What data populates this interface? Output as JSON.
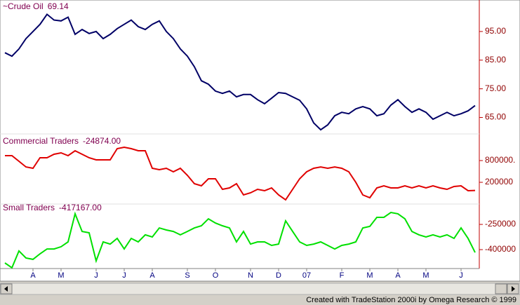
{
  "chart_data": [
    {
      "type": "line",
      "name": "~Crude Oil",
      "value_label": "69.14",
      "color": "#000066",
      "values": [
        87.6,
        86.4,
        88.9,
        92.5,
        95,
        97.5,
        101,
        99,
        98.7,
        100,
        94,
        95.7,
        94.3,
        95,
        92.5,
        94,
        96,
        97.5,
        99,
        96.7,
        95.7,
        97.5,
        98.7,
        95,
        92.5,
        88.9,
        86.4,
        82.7,
        77.8,
        76.6,
        74.2,
        73.4,
        74.2,
        72.2,
        73,
        73,
        71.2,
        69.8,
        71.7,
        73.7,
        73.4,
        72.2,
        71,
        68,
        63.1,
        60.7,
        62.4,
        65.6,
        66.8,
        66.3,
        68,
        68.8,
        68,
        65.6,
        66.3,
        69.3,
        71.2,
        68.8,
        66.8,
        68,
        66.8,
        64.4,
        65.6,
        66.8,
        65.6,
        66.3,
        67.3,
        69.14
      ],
      "ylim": [
        59.5,
        105.5
      ],
      "yticks": [
        {
          "value": 95,
          "label": "95.00"
        },
        {
          "value": 85,
          "label": "85.00"
        },
        {
          "value": 75,
          "label": "75.00"
        },
        {
          "value": 65,
          "label": "65.00"
        }
      ]
    },
    {
      "type": "line",
      "name": "Commercial Traders",
      "value_label": "-24874.00",
      "color": "#e00000",
      "values": [
        935000,
        935000,
        780000,
        625000,
        587000,
        877000,
        877000,
        974000,
        1013000,
        935000,
        1071000,
        974000,
        877000,
        819000,
        819000,
        819000,
        1129000,
        1168000,
        1129000,
        1071000,
        1071000,
        587000,
        548000,
        587000,
        490000,
        587000,
        394000,
        161000,
        103000,
        297000,
        297000,
        6000,
        45000,
        161000,
        -148000,
        -90000,
        6000,
        -32000,
        45000,
        -148000,
        -284000,
        6000,
        297000,
        490000,
        587000,
        625000,
        587000,
        625000,
        587000,
        490000,
        200000,
        -148000,
        -226000,
        45000,
        103000,
        45000,
        45000,
        103000,
        45000,
        103000,
        45000,
        103000,
        45000,
        6000,
        84000,
        103000,
        -32000,
        -24874
      ],
      "ylim": [
        -380000,
        1516000
      ],
      "yticks": [
        {
          "value": 800000,
          "label": "800000."
        },
        200000
      ]
    },
    {
      "type": "line",
      "name": "Small Traders",
      "value_label": "-417167.00",
      "color": "#00e000",
      "values": [
        -479000,
        -508000,
        -408000,
        -450000,
        -458000,
        -425000,
        -396000,
        -396000,
        -383000,
        -354000,
        -187000,
        -292000,
        -300000,
        -467000,
        -354000,
        -367000,
        -333000,
        -396000,
        -333000,
        -354000,
        -312000,
        -325000,
        -271000,
        -283000,
        -292000,
        -312000,
        -292000,
        -271000,
        -258000,
        -217000,
        -242000,
        -258000,
        -271000,
        -354000,
        -292000,
        -367000,
        -354000,
        -354000,
        -375000,
        -367000,
        -229000,
        -292000,
        -354000,
        -375000,
        -367000,
        -354000,
        -375000,
        -396000,
        -375000,
        -367000,
        -354000,
        -271000,
        -262000,
        -208000,
        -208000,
        -179000,
        -187000,
        -217000,
        -292000,
        -312000,
        -325000,
        -312000,
        -325000,
        -312000,
        -333000,
        -271000,
        -333000,
        -417167
      ],
      "ylim": [
        -512500,
        -133000
      ],
      "yticks": [
        -250000,
        -400000
      ],
      "categories": [
        null,
        null,
        null,
        null,
        "A",
        null,
        null,
        null,
        "M",
        null,
        null,
        null,
        null,
        "J",
        null,
        null,
        null,
        "J",
        null,
        null,
        null,
        "A",
        null,
        null,
        null,
        null,
        "S",
        null,
        null,
        null,
        "O",
        null,
        null,
        null,
        null,
        "N",
        null,
        null,
        null,
        "D",
        null,
        null,
        null,
        "07",
        null,
        null,
        null,
        null,
        "F",
        null,
        null,
        null,
        "M",
        null,
        null,
        null,
        "A",
        null,
        null,
        null,
        "M",
        null,
        null,
        null,
        null,
        "J",
        null,
        null
      ]
    }
  ],
  "footer": "Created with TradeStation 2000i by Omega Research © 1999"
}
